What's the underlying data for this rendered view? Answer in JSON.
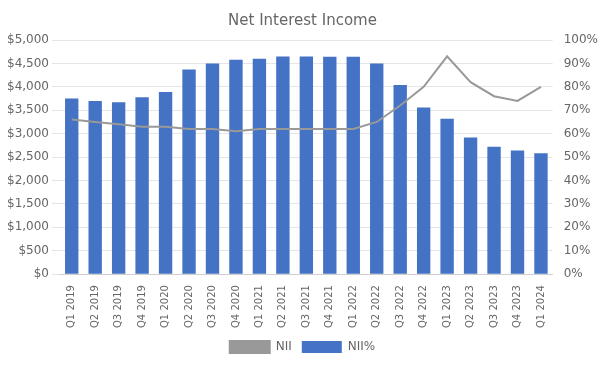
{
  "chart_data": {
    "type": "bar",
    "title": "Net Interest Income",
    "categories": [
      "Q1 2019",
      "Q2 2019",
      "Q3 2019",
      "Q4 2019",
      "Q1 2020",
      "Q2 2020",
      "Q3 2020",
      "Q4 2020",
      "Q1 2021",
      "Q2 2021",
      "Q3 2021",
      "Q4 2021",
      "Q1 2022",
      "Q2 2022",
      "Q3 2022",
      "Q4 2022",
      "Q1 2023",
      "Q2 2023",
      "Q3 2023",
      "Q4 2023",
      "Q1 2024"
    ],
    "series": [
      {
        "name": "NII%",
        "type": "bar",
        "color": "#4472C4",
        "values": [
          3750,
          3700,
          3670,
          3780,
          3890,
          4370,
          4500,
          4580,
          4600,
          4650,
          4650,
          4640,
          4640,
          4500,
          4040,
          3560,
          3320,
          2920,
          2720,
          2640,
          2580
        ]
      },
      {
        "name": "NII",
        "type": "line",
        "color": "#999999",
        "axis": "y2",
        "values": [
          66,
          65,
          64,
          63,
          63,
          62,
          62,
          61,
          62,
          62,
          62,
          62,
          62,
          65,
          72,
          80,
          93,
          82,
          76,
          74,
          80
        ]
      }
    ],
    "ylim": [
      0,
      5000
    ],
    "yticks": [
      {
        "value": 0,
        "label": "$0"
      },
      {
        "value": 500,
        "label": "$500"
      },
      {
        "value": 1000,
        "label": "$1,000"
      },
      {
        "value": 1500,
        "label": "$1,500"
      },
      {
        "value": 2000,
        "label": "$2,000"
      },
      {
        "value": 2500,
        "label": "$2,500"
      },
      {
        "value": 3000,
        "label": "$3,000"
      },
      {
        "value": 3500,
        "label": "$3,500"
      },
      {
        "value": 4000,
        "label": "$4,000"
      },
      {
        "value": 4500,
        "label": "$4,500"
      },
      {
        "value": 5000,
        "label": "$5,000"
      }
    ],
    "y2lim": [
      0,
      100
    ],
    "y2ticks": [
      {
        "value": 0,
        "label": "0%"
      },
      {
        "value": 10,
        "label": "10%"
      },
      {
        "value": 20,
        "label": "20%"
      },
      {
        "value": 30,
        "label": "30%"
      },
      {
        "value": 40,
        "label": "40%"
      },
      {
        "value": 50,
        "label": "50%"
      },
      {
        "value": 60,
        "label": "60%"
      },
      {
        "value": 70,
        "label": "70%"
      },
      {
        "value": 80,
        "label": "80%"
      },
      {
        "value": 90,
        "label": "90%"
      },
      {
        "value": 100,
        "label": "100%"
      }
    ],
    "grid": true,
    "legend": "bottom"
  }
}
